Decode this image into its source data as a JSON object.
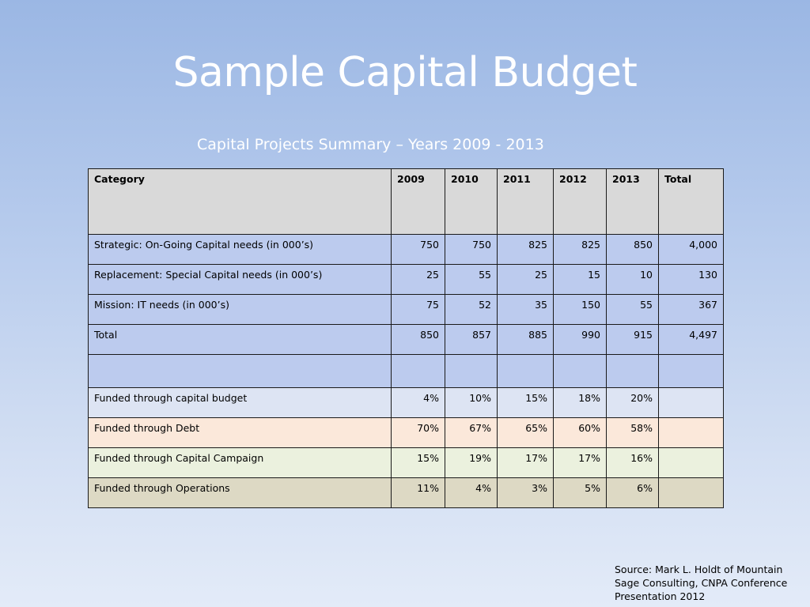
{
  "slide": {
    "title": "Sample Capital Budget",
    "subtitle": "Capital Projects Summary – Years 2009 - 2013",
    "source": "Source: Mark L. Holdt of Mountain Sage Consulting, CNPA Conference Presentation 2012"
  },
  "table": {
    "headers": [
      "Category",
      "2009",
      "2010",
      "2011",
      "2012",
      "2013",
      "Total"
    ],
    "rows": [
      {
        "label": "Strategic: On-Going Capital needs  (in 000’s)",
        "values": [
          "750",
          "750",
          "825",
          "825",
          "850",
          "4,000"
        ]
      },
      {
        "label": "Replacement: Special Capital needs  (in 000’s)",
        "values": [
          "25",
          "55",
          "25",
          "15",
          "10",
          "130"
        ]
      },
      {
        "label": "Mission: IT needs  (in 000’s)",
        "values": [
          "75",
          "52",
          "35",
          "150",
          "55",
          "367"
        ]
      },
      {
        "label": "Total",
        "values": [
          "850",
          "857",
          "885",
          "990",
          "915",
          "4,497"
        ]
      },
      {
        "label": "",
        "values": [
          "",
          "",
          "",
          "",
          "",
          ""
        ]
      },
      {
        "label": "Funded through capital budget",
        "values": [
          "4%",
          "10%",
          "15%",
          "18%",
          "20%",
          ""
        ]
      },
      {
        "label": "Funded through Debt",
        "values": [
          "70%",
          "67%",
          "65%",
          "60%",
          "58%",
          ""
        ]
      },
      {
        "label": "Funded through Capital Campaign",
        "values": [
          "15%",
          "19%",
          "17%",
          "17%",
          "16%",
          ""
        ]
      },
      {
        "label": "Funded through Operations",
        "values": [
          "11%",
          "4%",
          "3%",
          "5%",
          "6%",
          ""
        ]
      }
    ]
  },
  "colors": {
    "header_row": "#d9d9d9",
    "blue_rows": "#bccbee",
    "capital_budget_row": "#dde4f3",
    "debt_row": "#fbe8da",
    "campaign_row": "#ebf1de",
    "operations_row": "#ddd9c4"
  }
}
